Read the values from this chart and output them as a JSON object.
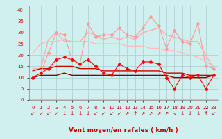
{
  "x": [
    0,
    1,
    2,
    3,
    4,
    5,
    6,
    7,
    8,
    9,
    10,
    11,
    12,
    13,
    14,
    15,
    16,
    17,
    18,
    19,
    20,
    21,
    22,
    23
  ],
  "background_color": "#cff0ee",
  "grid_color": "#aacccc",
  "xlabel": "Vent moyen/en rafales ( km/h )",
  "xlabel_color": "#cc0000",
  "xlabel_fontsize": 6.5,
  "tick_color": "#cc0000",
  "tick_fontsize": 5.0,
  "ylim": [
    0,
    42
  ],
  "yticks": [
    0,
    5,
    10,
    15,
    20,
    25,
    30,
    35,
    40
  ],
  "series": [
    {
      "values": [
        10,
        12,
        21,
        30,
        29,
        18,
        16,
        34,
        28,
        29,
        29,
        32,
        29,
        28,
        32,
        37,
        33,
        23,
        31,
        26,
        25,
        34,
        15,
        14
      ],
      "color": "#ff9999",
      "linewidth": 0.8,
      "marker": "D",
      "markersize": 2.0
    },
    {
      "values": [
        14,
        14,
        27,
        30,
        26,
        26,
        26,
        30,
        29,
        27,
        28,
        27,
        28,
        27,
        30,
        31,
        32,
        29,
        28,
        27,
        26,
        26,
        20,
        14
      ],
      "color": "#ffaaaa",
      "linewidth": 1.0,
      "marker": null,
      "markersize": 0
    },
    {
      "values": [
        21,
        25,
        26,
        26,
        27,
        26,
        26,
        26,
        25,
        25,
        25,
        25,
        24,
        24,
        24,
        23,
        23,
        22,
        22,
        21,
        20,
        19,
        17,
        15
      ],
      "color": "#ffbbbb",
      "linewidth": 1.0,
      "marker": null,
      "markersize": 0
    },
    {
      "values": [
        10,
        12,
        14,
        18,
        19,
        18,
        16,
        18,
        15,
        12,
        11,
        16,
        14,
        13,
        17,
        17,
        16,
        10,
        5,
        11,
        10,
        11,
        5,
        11
      ],
      "color": "#ff0000",
      "linewidth": 0.8,
      "marker": "D",
      "markersize": 2.0
    },
    {
      "values": [
        13,
        14,
        14,
        15,
        15,
        15,
        14,
        14,
        14,
        13,
        13,
        13,
        13,
        13,
        13,
        13,
        13,
        12,
        12,
        12,
        11,
        11,
        11,
        11
      ],
      "color": "#cc0000",
      "linewidth": 1.0,
      "marker": null,
      "markersize": 0
    },
    {
      "values": [
        10,
        11,
        11,
        11,
        12,
        11,
        11,
        11,
        11,
        11,
        11,
        11,
        11,
        11,
        11,
        11,
        11,
        11,
        10,
        10,
        10,
        10,
        10,
        11
      ],
      "color": "#880000",
      "linewidth": 1.0,
      "marker": null,
      "markersize": 0
    }
  ],
  "wind_arrows": [
    "↙",
    "↙",
    "↙",
    "↙",
    "↓",
    "↓",
    "↓",
    "↓",
    "↙",
    "↙",
    "↙",
    "↙",
    "↗",
    "↑",
    "↗",
    "↗",
    "↗",
    "↗",
    "↘",
    "↓",
    "↓",
    "↓",
    "↑",
    "↙"
  ]
}
